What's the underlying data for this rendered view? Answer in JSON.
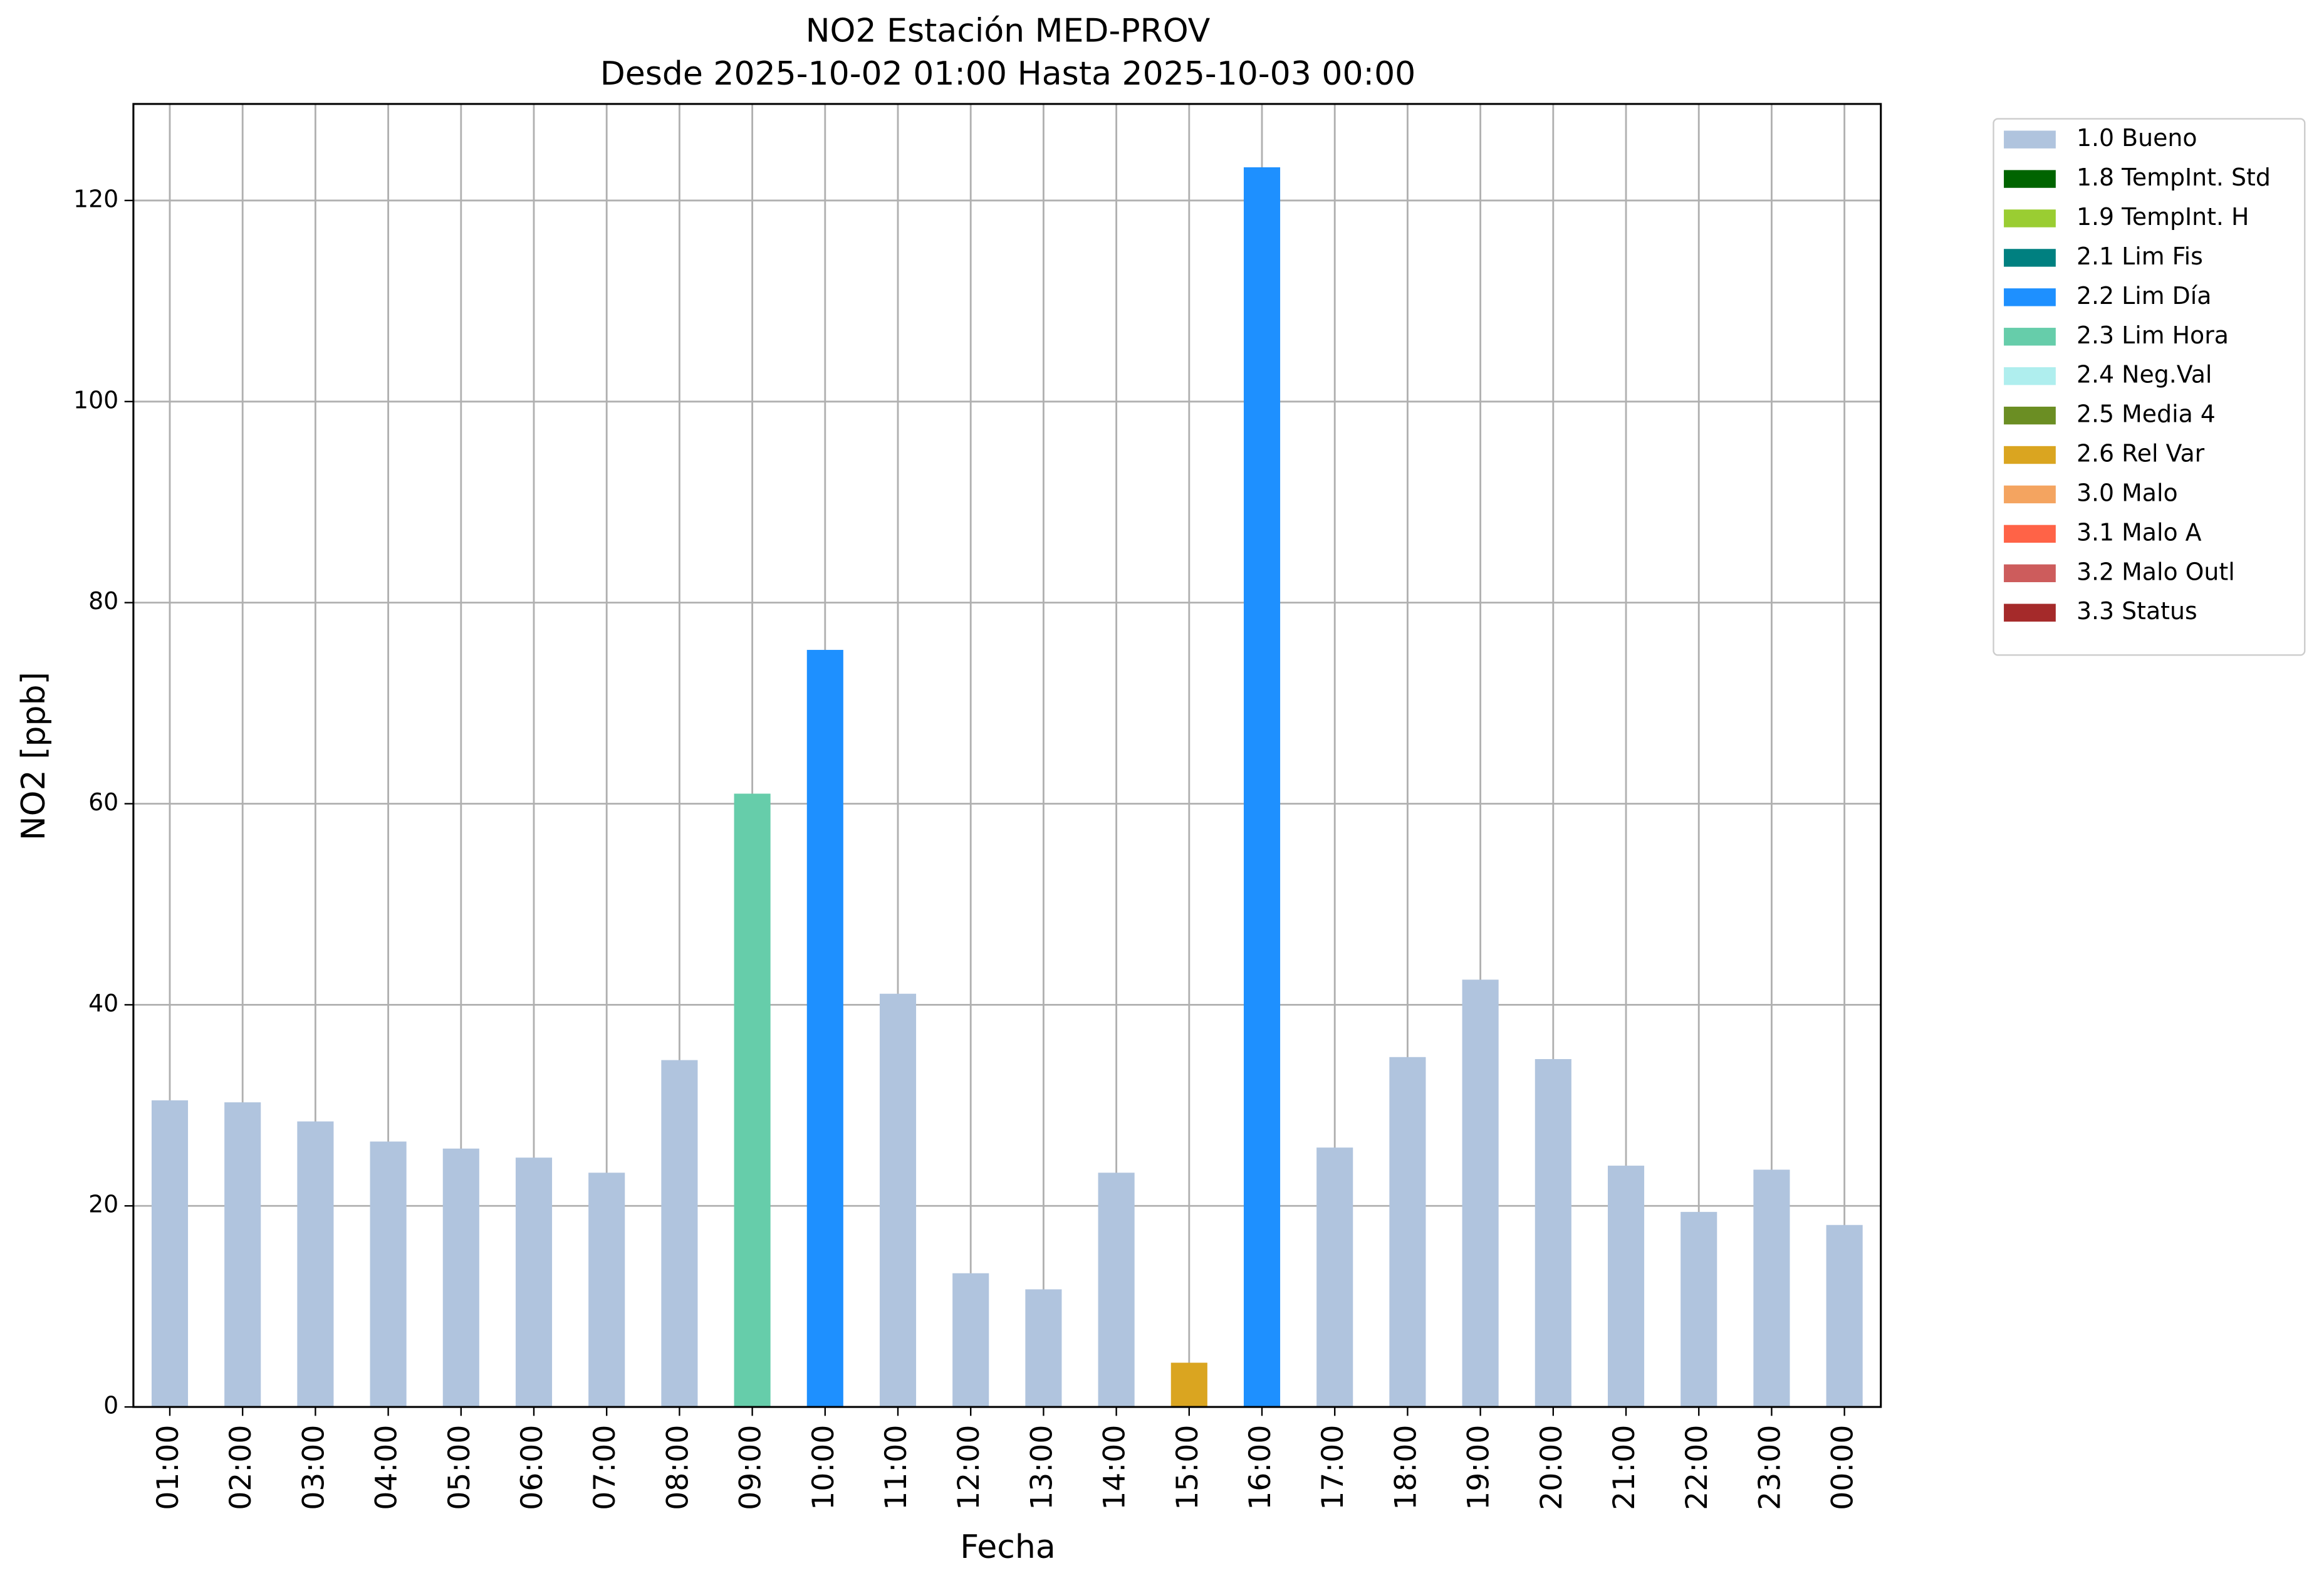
{
  "chart_data": {
    "type": "bar",
    "stacked": true,
    "title": "NO2 Estación MED-PROV",
    "subtitle": "Desde 2025-10-02 01:00 Hasta 2025-10-03 00:00",
    "x_label": "Fecha",
    "y_label": "NO2 [ppb]",
    "categories": [
      "01:00",
      "02:00",
      "03:00",
      "04:00",
      "05:00",
      "06:00",
      "07:00",
      "08:00",
      "09:00",
      "10:00",
      "11:00",
      "12:00",
      "13:00",
      "14:00",
      "15:00",
      "16:00",
      "17:00",
      "18:00",
      "19:00",
      "20:00",
      "21:00",
      "22:00",
      "23:00",
      "00:00"
    ],
    "series": [
      {
        "name": "1.0 Bueno",
        "color": "#b0c4de",
        "values": [
          30.5,
          30.3,
          28.4,
          26.4,
          25.7,
          24.8,
          23.3,
          34.5,
          null,
          null,
          41.1,
          13.3,
          11.7,
          23.3,
          null,
          null,
          25.8,
          34.8,
          42.5,
          34.6,
          24.0,
          19.4,
          23.6,
          18.1
        ]
      },
      {
        "name": "1.8 TempInt. Std",
        "color": "#006400",
        "values": [
          null,
          null,
          null,
          null,
          null,
          null,
          null,
          null,
          null,
          null,
          null,
          null,
          null,
          null,
          null,
          null,
          null,
          null,
          null,
          null,
          null,
          null,
          null,
          null
        ]
      },
      {
        "name": "1.9 TempInt. H",
        "color": "#9acd32",
        "values": [
          null,
          null,
          null,
          null,
          null,
          null,
          null,
          null,
          null,
          null,
          null,
          null,
          null,
          null,
          null,
          null,
          null,
          null,
          null,
          null,
          null,
          null,
          null,
          null
        ]
      },
      {
        "name": "2.1 Lim Fis",
        "color": "#008080",
        "values": [
          null,
          null,
          null,
          null,
          null,
          null,
          null,
          null,
          null,
          null,
          null,
          null,
          null,
          null,
          null,
          null,
          null,
          null,
          null,
          null,
          null,
          null,
          null,
          null
        ]
      },
      {
        "name": "2.2 Lim Día",
        "color": "#1e90ff",
        "values": [
          null,
          null,
          null,
          null,
          null,
          null,
          null,
          null,
          null,
          75.3,
          null,
          null,
          null,
          null,
          null,
          123.3,
          null,
          null,
          null,
          null,
          null,
          null,
          null,
          null
        ]
      },
      {
        "name": "2.3 Lim Hora",
        "color": "#66cdaa",
        "values": [
          null,
          null,
          null,
          null,
          null,
          null,
          null,
          null,
          61.0,
          null,
          null,
          null,
          null,
          null,
          null,
          null,
          null,
          null,
          null,
          null,
          null,
          null,
          null,
          null
        ]
      },
      {
        "name": "2.4 Neg.Val",
        "color": "#afeeee",
        "values": [
          null,
          null,
          null,
          null,
          null,
          null,
          null,
          null,
          null,
          null,
          null,
          null,
          null,
          null,
          null,
          null,
          null,
          null,
          null,
          null,
          null,
          null,
          null,
          null
        ]
      },
      {
        "name": "2.5 Media 4",
        "color": "#6b8e23",
        "values": [
          null,
          null,
          null,
          null,
          null,
          null,
          null,
          null,
          null,
          null,
          null,
          null,
          null,
          null,
          null,
          null,
          null,
          null,
          null,
          null,
          null,
          null,
          null,
          null
        ]
      },
      {
        "name": "2.6 Rel Var",
        "color": "#daa520",
        "values": [
          null,
          null,
          null,
          null,
          null,
          null,
          null,
          null,
          null,
          null,
          null,
          null,
          null,
          null,
          4.4,
          null,
          null,
          null,
          null,
          null,
          null,
          null,
          null,
          null
        ]
      },
      {
        "name": "3.0 Malo",
        "color": "#f4a460",
        "values": [
          null,
          null,
          null,
          null,
          null,
          null,
          null,
          null,
          null,
          null,
          null,
          null,
          null,
          null,
          null,
          null,
          null,
          null,
          null,
          null,
          null,
          null,
          null,
          null
        ]
      },
      {
        "name": "3.1 Malo A",
        "color": "#ff6347",
        "values": [
          null,
          null,
          null,
          null,
          null,
          null,
          null,
          null,
          null,
          null,
          null,
          null,
          null,
          null,
          null,
          null,
          null,
          null,
          null,
          null,
          null,
          null,
          null,
          null
        ]
      },
      {
        "name": "3.2 Malo Outl",
        "color": "#cd5c5c",
        "values": [
          null,
          null,
          null,
          null,
          null,
          null,
          null,
          null,
          null,
          null,
          null,
          null,
          null,
          null,
          null,
          null,
          null,
          null,
          null,
          null,
          null,
          null,
          null,
          null
        ]
      },
      {
        "name": "3.3 Status",
        "color": "#a52a2a",
        "values": [
          null,
          null,
          null,
          null,
          null,
          null,
          null,
          null,
          null,
          null,
          null,
          null,
          null,
          null,
          null,
          null,
          null,
          null,
          null,
          null,
          null,
          null,
          null,
          null
        ]
      }
    ],
    "ylim": [
      0,
      129.6
    ],
    "yticks": [
      0,
      20,
      40,
      60,
      80,
      100,
      120
    ],
    "grid": true,
    "legend": "outside-right"
  }
}
